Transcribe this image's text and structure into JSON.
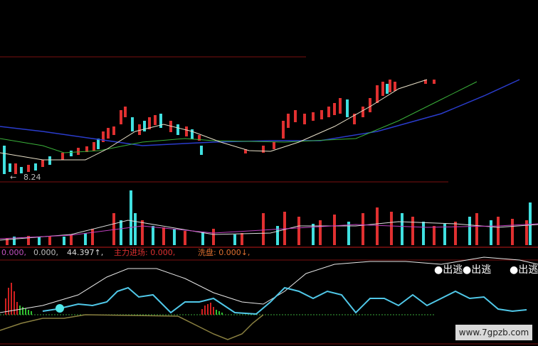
{
  "price_label": "8.24",
  "indicator_bar": [
    {
      "text": "0.000,"
    },
    {
      "text": "0.000,"
    },
    {
      "text": "44.397↑,"
    },
    {
      "text": "主力进场: 0.000,"
    },
    {
      "text": "洗盘: 0.000↓,"
    }
  ],
  "signals": [
    "●出逃",
    "●出逃",
    "●出逃"
  ],
  "watermark": "www.7gpzb.com"
}
